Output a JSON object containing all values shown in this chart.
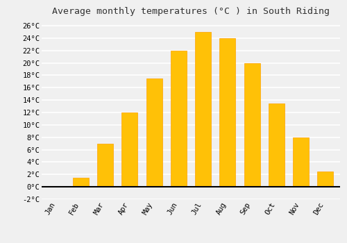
{
  "months": [
    "Jan",
    "Feb",
    "Mar",
    "Apr",
    "May",
    "Jun",
    "Jul",
    "Aug",
    "Sep",
    "Oct",
    "Nov",
    "Dec"
  ],
  "values": [
    0.0,
    1.5,
    7.0,
    12.0,
    17.5,
    22.0,
    25.0,
    24.0,
    20.0,
    13.5,
    8.0,
    2.5
  ],
  "bar_color": "#FFC107",
  "bar_edge_color": "#FFA000",
  "title": "Average monthly temperatures (°C ) in South Riding",
  "ylim": [
    -2,
    27
  ],
  "yticks": [
    -2,
    0,
    2,
    4,
    6,
    8,
    10,
    12,
    14,
    16,
    18,
    20,
    22,
    24,
    26
  ],
  "ytick_labels": [
    "-2°C",
    "0°C",
    "2°C",
    "4°C",
    "6°C",
    "8°C",
    "10°C",
    "12°C",
    "14°C",
    "16°C",
    "18°C",
    "20°C",
    "22°C",
    "24°C",
    "26°C"
  ],
  "background_color": "#f0f0f0",
  "plot_bg_color": "#f0f0f0",
  "grid_color": "#ffffff",
  "title_fontsize": 9.5,
  "tick_fontsize": 7.5,
  "zero_line_color": "#000000"
}
